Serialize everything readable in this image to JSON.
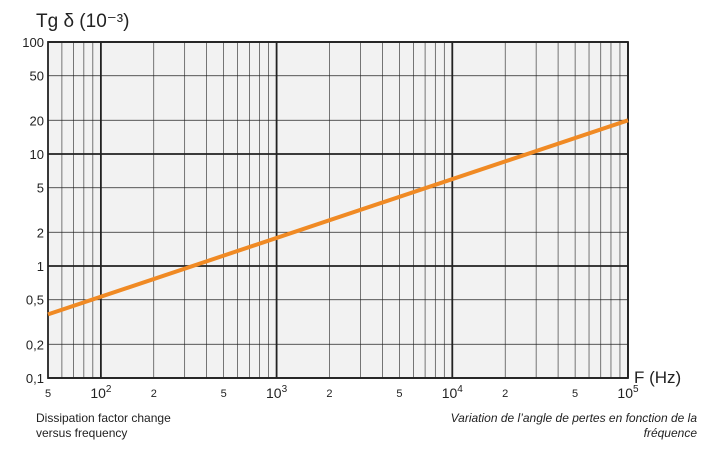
{
  "chart_data": {
    "type": "line",
    "y_title": "Tg δ (10⁻³)",
    "x_title": "F (Hz)",
    "x_scale": "log",
    "y_scale": "log",
    "xlim": [
      50,
      100000
    ],
    "ylim": [
      0.1,
      100
    ],
    "grid": true,
    "x_major_ticks": [
      {
        "value": 100,
        "base": "10",
        "exp": "2"
      },
      {
        "value": 1000,
        "base": "10",
        "exp": "3"
      },
      {
        "value": 10000,
        "base": "10",
        "exp": "4"
      },
      {
        "value": 100000,
        "base": "10",
        "exp": "5"
      }
    ],
    "x_minor_ticks": [
      {
        "value": 50,
        "label": "5"
      },
      {
        "value": 200,
        "label": "2"
      },
      {
        "value": 500,
        "label": "5"
      },
      {
        "value": 2000,
        "label": "2"
      },
      {
        "value": 5000,
        "label": "5"
      },
      {
        "value": 20000,
        "label": "2"
      },
      {
        "value": 50000,
        "label": "5"
      }
    ],
    "y_ticks": [
      {
        "value": 100,
        "label": "100"
      },
      {
        "value": 50,
        "label": "50"
      },
      {
        "value": 20,
        "label": "20"
      },
      {
        "value": 10,
        "label": "10"
      },
      {
        "value": 5,
        "label": "5"
      },
      {
        "value": 2,
        "label": "2"
      },
      {
        "value": 1,
        "label": "1"
      },
      {
        "value": 0.5,
        "label": "0,5"
      },
      {
        "value": 0.2,
        "label": "0,2"
      },
      {
        "value": 0.1,
        "label": "0,1"
      }
    ],
    "series": [
      {
        "color": "#f08a24",
        "x": [
          50,
          100000
        ],
        "y": [
          0.37,
          20
        ]
      }
    ]
  },
  "captions": {
    "english": [
      "Dissipation factor change",
      "versus frequency"
    ],
    "french": [
      "Variation de l’angle de pertes en fonction de la",
      "fréquence"
    ]
  },
  "colors": {
    "grid": "#222222",
    "plot_background": "#f2f2f2",
    "line": "#f08a24"
  }
}
